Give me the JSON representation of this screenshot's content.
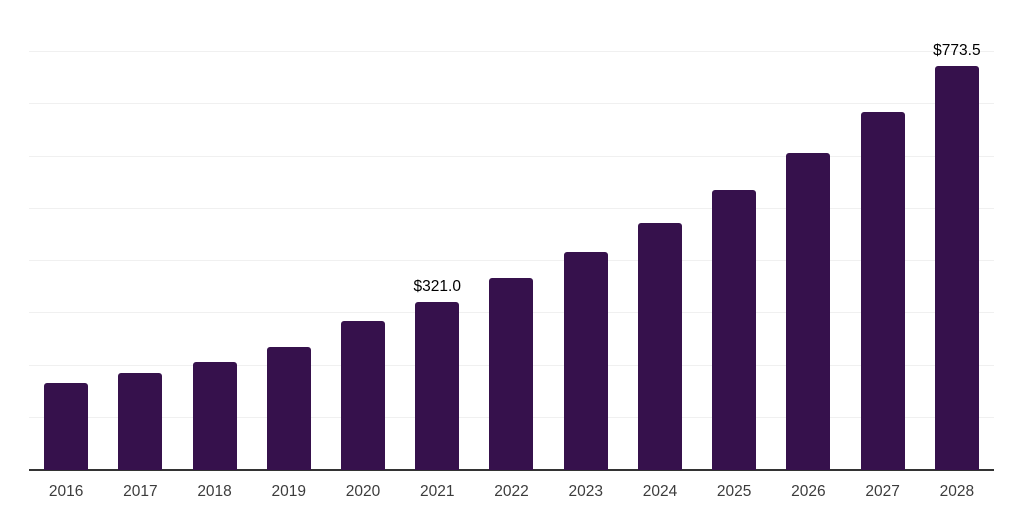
{
  "chart": {
    "background_color": "#ffffff",
    "bar_color": "#36114C",
    "grid_color": "#f0f0f0",
    "axis_color": "#333333",
    "tick_label_color": "#3c3c3c",
    "data_label_color": "#000000"
  },
  "chart_data": {
    "type": "bar",
    "categories": [
      "2016",
      "2017",
      "2018",
      "2019",
      "2020",
      "2021",
      "2022",
      "2023",
      "2024",
      "2025",
      "2026",
      "2027",
      "2028"
    ],
    "values": [
      167,
      186,
      207,
      235,
      286,
      321,
      367,
      417,
      473,
      536,
      607,
      686,
      773.5
    ],
    "data_labels": [
      "",
      "",
      "",
      "",
      "",
      "$321.0",
      "",
      "",
      "",
      "",
      "",
      "",
      "$773.5"
    ],
    "title": "",
    "xlabel": "",
    "ylabel": "",
    "ylim": [
      0,
      900
    ],
    "grid_step": 100,
    "grid": "horizontal",
    "y_axis_labels_visible": false,
    "legend_position": "none"
  }
}
